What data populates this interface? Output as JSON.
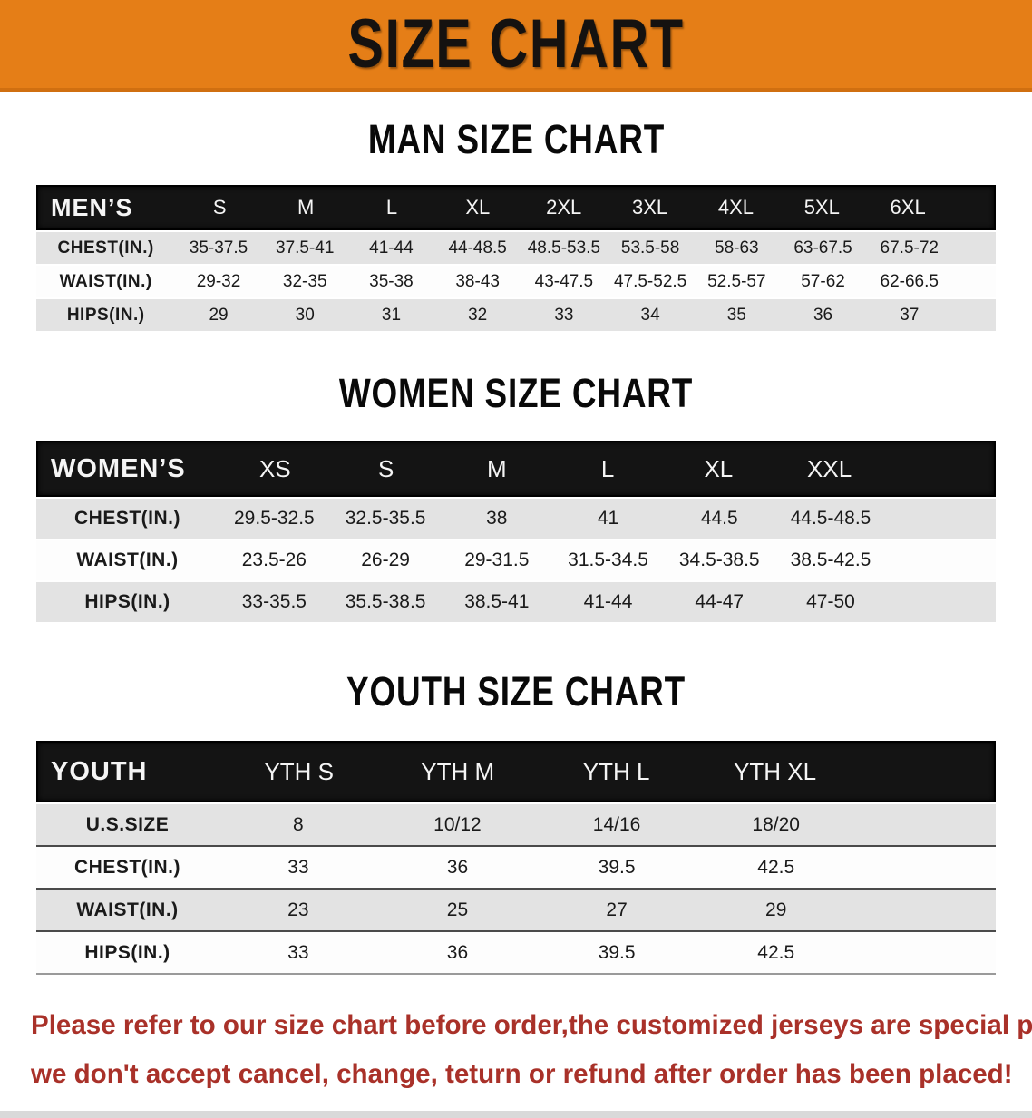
{
  "banner": {
    "title": "SIZE CHART"
  },
  "colors": {
    "banner_orange": "#e57e17",
    "header_bar_black": "#141414",
    "row_stripe_gray": "#e3e3e3",
    "notice_red": "#a93129"
  },
  "sections": [
    {
      "key": "mens",
      "heading": "MAN SIZE CHART",
      "label": "MEN’S",
      "columns": [
        "S",
        "M",
        "L",
        "XL",
        "2XL",
        "3XL",
        "4XL",
        "5XL",
        "6XL"
      ],
      "rows": [
        {
          "label": "CHEST(IN.)",
          "values": [
            "35-37.5",
            "37.5-41",
            "41-44",
            "44-48.5",
            "48.5-53.5",
            "53.5-58",
            "58-63",
            "63-67.5",
            "67.5-72"
          ]
        },
        {
          "label": "WAIST(IN.)",
          "values": [
            "29-32",
            "32-35",
            "35-38",
            "38-43",
            "43-47.5",
            "47.5-52.5",
            "52.5-57",
            "57-62",
            "62-66.5"
          ]
        },
        {
          "label": "HIPS(IN.)",
          "values": [
            "29",
            "30",
            "31",
            "32",
            "33",
            "34",
            "35",
            "36",
            "37"
          ]
        }
      ]
    },
    {
      "key": "womens",
      "heading": "WOMEN SIZE CHART",
      "label": "WOMEN’S",
      "columns": [
        "XS",
        "S",
        "M",
        "L",
        "XL",
        "XXL"
      ],
      "rows": [
        {
          "label": "CHEST(IN.)",
          "values": [
            "29.5-32.5",
            "32.5-35.5",
            "38",
            "41",
            "44.5",
            "44.5-48.5"
          ]
        },
        {
          "label": "WAIST(IN.)",
          "values": [
            "23.5-26",
            "26-29",
            "29-31.5",
            "31.5-34.5",
            "34.5-38.5",
            "38.5-42.5"
          ]
        },
        {
          "label": "HIPS(IN.)",
          "values": [
            "33-35.5",
            "35.5-38.5",
            "38.5-41",
            "41-44",
            "44-47",
            "47-50"
          ]
        }
      ]
    },
    {
      "key": "youth",
      "heading": "YOUTH SIZE CHART",
      "label": "YOUTH",
      "columns": [
        "YTH S",
        "YTH M",
        "YTH L",
        "YTH XL"
      ],
      "rows": [
        {
          "label": "U.S.SIZE",
          "values": [
            "8",
            "10/12",
            "14/16",
            "18/20"
          ]
        },
        {
          "label": "CHEST(IN.)",
          "values": [
            "33",
            "36",
            "39.5",
            "42.5"
          ]
        },
        {
          "label": "WAIST(IN.)",
          "values": [
            "23",
            "25",
            "27",
            "29"
          ]
        },
        {
          "label": "HIPS(IN.)",
          "values": [
            "33",
            "36",
            "39.5",
            "42.5"
          ]
        }
      ]
    }
  ],
  "footer": {
    "line1": "Please refer to our size chart before order,the customized jerseys are special products,",
    "line2": "we don't accept cancel, change, teturn or refund after order has been placed!"
  }
}
